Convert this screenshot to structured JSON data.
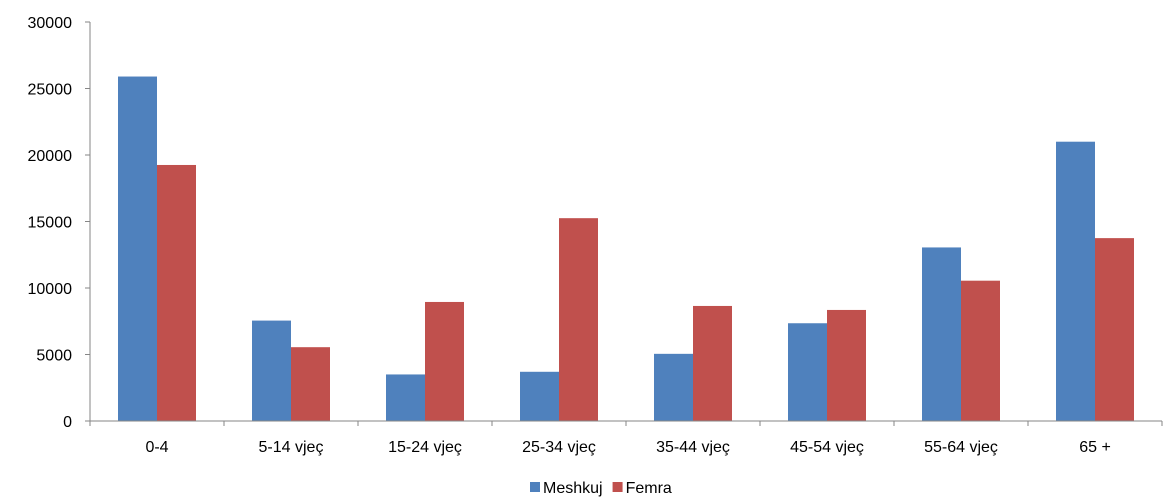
{
  "chart_data": {
    "type": "bar",
    "categories": [
      "0-4",
      "5-14 vjeç",
      "15-24 vjeç",
      "25-34 vjeç",
      "35-44 vjeç",
      "45-54 vjeç",
      "55-64 vjeç",
      "65 +"
    ],
    "series": [
      {
        "name": "Meshkuj",
        "color": "#4F81BD",
        "values": [
          25900,
          7550,
          3500,
          3700,
          5050,
          7350,
          13050,
          21000
        ]
      },
      {
        "name": "Femra",
        "color": "#C0504D",
        "values": [
          19250,
          5550,
          8950,
          15250,
          8650,
          8350,
          10550,
          13750
        ]
      }
    ],
    "ylim": [
      0,
      30000
    ],
    "yticks": [
      0,
      5000,
      10000,
      15000,
      20000,
      25000,
      30000
    ],
    "grid": false,
    "legend_position": "bottom",
    "title": "",
    "xlabel": "",
    "ylabel": ""
  }
}
